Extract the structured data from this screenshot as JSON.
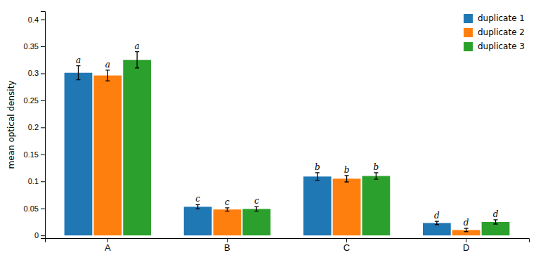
{
  "chart_data": {
    "type": "bar",
    "categories": [
      "A",
      "B",
      "C",
      "D"
    ],
    "series": [
      {
        "name": "duplicate 1",
        "values": [
          0.301,
          0.053,
          0.109,
          0.023
        ],
        "errors": [
          0.013,
          0.004,
          0.007,
          0.003
        ],
        "annotations": [
          "a",
          "c",
          "b",
          "d"
        ]
      },
      {
        "name": "duplicate 2",
        "values": [
          0.296,
          0.048,
          0.105,
          0.01
        ],
        "errors": [
          0.01,
          0.003,
          0.006,
          0.003
        ],
        "annotations": [
          "a",
          "c",
          "b",
          "d"
        ]
      },
      {
        "name": "duplicate 3",
        "values": [
          0.325,
          0.049,
          0.11,
          0.025
        ],
        "errors": [
          0.015,
          0.004,
          0.006,
          0.004
        ],
        "annotations": [
          "a",
          "c",
          "b",
          "d"
        ]
      }
    ],
    "ylabel": "mean optical density",
    "ylim": [
      -0.005,
      0.415
    ],
    "yticks": [
      0,
      0.05,
      0.1,
      0.15,
      0.2,
      0.25,
      0.3,
      0.35,
      0.4
    ],
    "legend": "upper right"
  }
}
